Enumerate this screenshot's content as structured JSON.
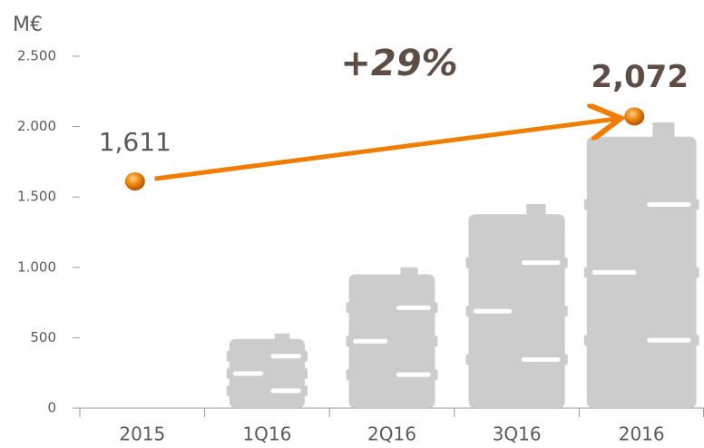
{
  "chart_data": {
    "type": "bar",
    "y_label": "M€",
    "annotation": "+29%",
    "categories": [
      "2015",
      "1Q16",
      "2Q16",
      "3Q16",
      "2016"
    ],
    "series": [
      {
        "type": "bar",
        "color": "#cccccc",
        "values": [
          null,
          530,
          1000,
          1450,
          2030
        ]
      },
      {
        "type": "scatter",
        "color": "#f07d00",
        "values": [
          1611,
          null,
          null,
          null,
          2072
        ],
        "value_labels": [
          "1,611",
          null,
          null,
          null,
          "2,072"
        ]
      }
    ],
    "ylim": [
      0,
      2500
    ],
    "yticks": [
      0,
      500,
      {
        "value": 1000,
        "label": "1.000"
      },
      {
        "value": 1500,
        "label": "1.500"
      },
      {
        "value": 2000,
        "label": "2.000"
      },
      {
        "value": 2500,
        "label": "2.500"
      }
    ]
  }
}
